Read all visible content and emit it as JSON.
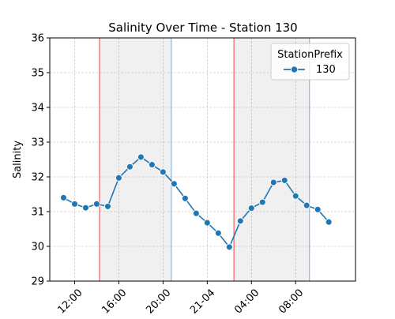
{
  "chart_data": {
    "type": "line",
    "title": "Salinity Over Time - Station 130",
    "xlabel": "",
    "ylabel": "Salinity",
    "ylim": [
      29,
      36
    ],
    "yticks": [
      29,
      30,
      31,
      32,
      33,
      34,
      35,
      36
    ],
    "x_axis": {
      "type": "time",
      "tick_labels": [
        "12:00",
        "16:00",
        "20:00",
        "21-04",
        "04:00",
        "08:00"
      ],
      "tick_times": [
        "2024-04-20T12:00",
        "2024-04-20T16:00",
        "2024-04-20T20:00",
        "2024-04-21T00:00",
        "2024-04-21T04:00",
        "2024-04-21T08:00"
      ],
      "range": [
        "2024-04-20T09:45",
        "2024-04-21T13:25"
      ]
    },
    "grid": true,
    "legend": {
      "title": "StationPrefix",
      "placement": "top-right",
      "entries": [
        "130"
      ]
    },
    "series": [
      {
        "name": "130",
        "color": "#1f77b4",
        "marker": "circle",
        "points": [
          {
            "x": "2024-04-20T11:00",
            "y": 31.4
          },
          {
            "x": "2024-04-20T12:00",
            "y": 31.22
          },
          {
            "x": "2024-04-20T13:00",
            "y": 31.11
          },
          {
            "x": "2024-04-20T14:00",
            "y": 31.22
          },
          {
            "x": "2024-04-20T15:00",
            "y": 31.15
          },
          {
            "x": "2024-04-20T16:00",
            "y": 31.97
          },
          {
            "x": "2024-04-20T17:00",
            "y": 32.29
          },
          {
            "x": "2024-04-20T18:00",
            "y": 32.57
          },
          {
            "x": "2024-04-20T19:00",
            "y": 32.35
          },
          {
            "x": "2024-04-20T20:00",
            "y": 32.14
          },
          {
            "x": "2024-04-20T21:00",
            "y": 31.8
          },
          {
            "x": "2024-04-20T22:00",
            "y": 31.38
          },
          {
            "x": "2024-04-20T23:00",
            "y": 30.95
          },
          {
            "x": "2024-04-21T00:00",
            "y": 30.68
          },
          {
            "x": "2024-04-21T01:00",
            "y": 30.38
          },
          {
            "x": "2024-04-21T02:00",
            "y": 29.98
          },
          {
            "x": "2024-04-21T03:00",
            "y": 30.73
          },
          {
            "x": "2024-04-21T04:00",
            "y": 31.1
          },
          {
            "x": "2024-04-21T05:00",
            "y": 31.27
          },
          {
            "x": "2024-04-21T06:00",
            "y": 31.84
          },
          {
            "x": "2024-04-21T07:00",
            "y": 31.9
          },
          {
            "x": "2024-04-21T08:00",
            "y": 31.45
          },
          {
            "x": "2024-04-21T09:00",
            "y": 31.18
          },
          {
            "x": "2024-04-21T10:00",
            "y": 31.06
          },
          {
            "x": "2024-04-21T11:00",
            "y": 30.7
          }
        ]
      }
    ],
    "shaded_regions": [
      {
        "start": "2024-04-20T14:15",
        "end": "2024-04-20T20:45",
        "fill": "#f0f0f0",
        "start_line_color": "#ff5c5c",
        "end_line_color": "#8fb8dc"
      },
      {
        "start": "2024-04-21T02:25",
        "end": "2024-04-21T09:15",
        "fill": "#f0f0f0",
        "start_line_color": "#ff5c5c",
        "end_line_color": "#8fb8dc"
      }
    ]
  }
}
